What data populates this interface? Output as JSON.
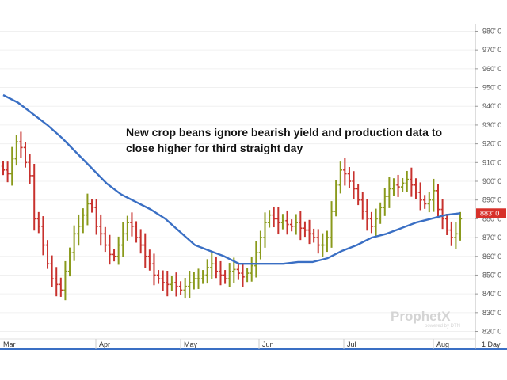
{
  "chart_data": {
    "type": "ohlc",
    "headline": [
      "New crop beans ignore bearish yield and production data to",
      "close higher for third straight day"
    ],
    "ylim": [
      816,
      984
    ],
    "y_ticks": [
      "820' 0",
      "830' 0",
      "840' 0",
      "850' 0",
      "860' 0",
      "870' 0",
      "880' 0",
      "890' 0",
      "900' 0",
      "910' 0",
      "920' 0",
      "930' 0",
      "940' 0",
      "950' 0",
      "960' 0",
      "970' 0",
      "980' 0"
    ],
    "months": [
      "Mar",
      "Apr",
      "May",
      "Jun",
      "Jul",
      "Aug"
    ],
    "last_price_label": "883' 0",
    "last_price": 883,
    "period_label": "1 Day",
    "colors": {
      "up": "#8a9a1c",
      "down": "#c8322e",
      "ma": "#3a6fc4",
      "price_tag": "#d7312a",
      "axis": "#3a6fc4"
    },
    "closes": [
      906,
      904,
      912,
      921,
      918,
      910,
      903,
      880,
      876,
      866,
      856,
      848,
      845,
      842,
      852,
      862,
      872,
      876,
      882,
      888,
      886,
      876,
      872,
      866,
      861,
      860,
      866,
      872,
      878,
      876,
      870,
      866,
      860,
      856,
      850,
      848,
      846,
      845,
      846,
      844,
      842,
      844,
      846,
      848,
      848,
      850,
      854,
      856,
      852,
      850,
      848,
      852,
      853,
      851,
      849,
      851,
      855,
      862,
      870,
      878,
      882,
      880,
      878,
      879,
      877,
      876,
      878,
      875,
      874,
      872,
      870,
      866,
      866,
      870,
      884,
      898,
      906,
      904,
      900,
      896,
      890,
      884,
      880,
      876,
      880,
      886,
      892,
      896,
      898,
      897,
      899,
      901,
      898,
      894,
      890,
      888,
      890,
      895,
      885,
      880,
      874,
      870,
      872,
      880
    ],
    "ma": [
      946,
      942,
      936,
      930,
      923,
      915,
      907,
      899,
      893,
      889,
      885,
      880,
      873,
      866,
      863,
      860,
      856,
      856,
      856,
      856,
      857,
      857,
      859,
      863,
      866,
      870,
      872,
      875,
      878,
      880,
      882,
      883
    ]
  },
  "watermark": {
    "brand": "ProphetX",
    "sub": "powered by DTN"
  }
}
